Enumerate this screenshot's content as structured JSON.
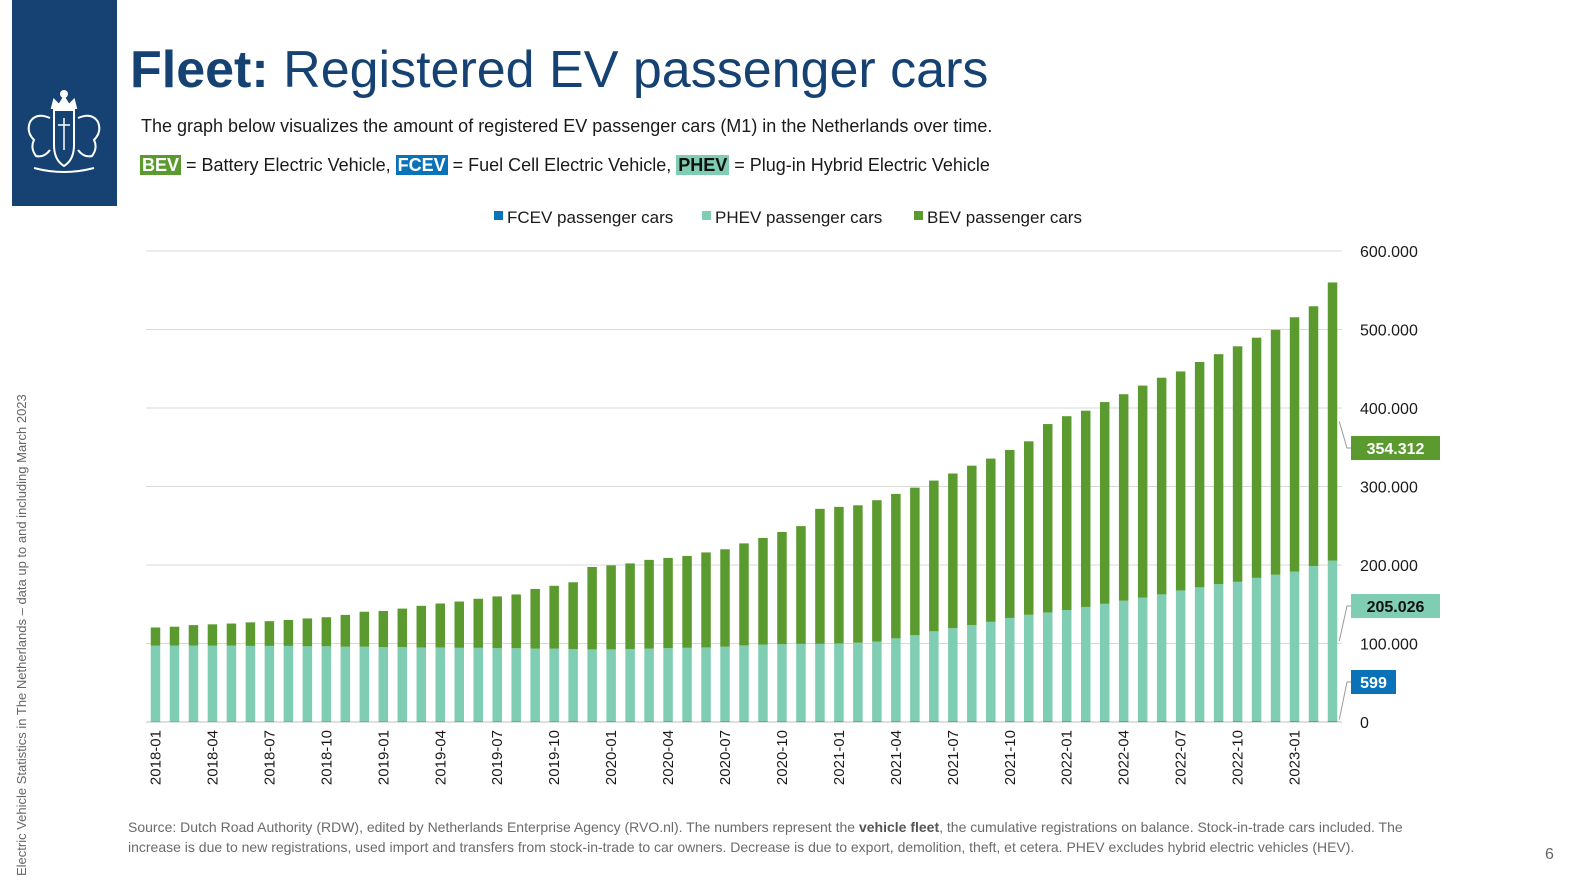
{
  "header": {
    "title_bold": "Fleet:",
    "title_rest": " Registered EV passenger cars",
    "intro": "The graph below visualizes the amount of registered EV passenger cars (M1) in the Netherlands over time.",
    "defs": {
      "bev_tag": "BEV",
      "bev_text": " = Battery Electric Vehicle, ",
      "fcev_tag": "FCEV",
      "fcev_text": " = Fuel Cell Electric Vehicle, ",
      "phev_tag": "PHEV",
      "phev_text": " = Plug-in Hybrid Electric Vehicle"
    }
  },
  "side_text": "Electric Vehicle Statistics in The Netherlands – data up to and including March 2023",
  "source": {
    "part1": "Source: Dutch Road Authority (RDW), edited by Netherlands Enterprise Agency (RVO.nl). The numbers represent the ",
    "bold": "vehicle fleet",
    "part2": ", the cumulative registrations on balance. Stock-in-trade cars included. The increase is due to new registrations, used import and transfers from stock-in-trade to car owners. Decrease is due to export, demolition, theft, et cetera. PHEV excludes hybrid electric vehicles (HEV)."
  },
  "page_number": "6",
  "colors": {
    "brand_blue": "#154273",
    "bev": "#5b9a2f",
    "phev": "#7fcdb3",
    "fcev": "#0a72b9",
    "grid": "#d9d9d9"
  },
  "chart_data": {
    "type": "bar",
    "stacked": true,
    "title": "",
    "xlabel": "",
    "ylabel": "",
    "ylim": [
      0,
      600000
    ],
    "yticks": [
      0,
      100000,
      200000,
      300000,
      400000,
      500000,
      600000
    ],
    "ytick_labels": [
      "0",
      "100.000",
      "200.000",
      "300.000",
      "400.000",
      "500.000",
      "600.000"
    ],
    "y_axis_side": "right",
    "grid": true,
    "legend_position": "top",
    "categories": [
      "2018-01",
      "2018-02",
      "2018-03",
      "2018-04",
      "2018-05",
      "2018-06",
      "2018-07",
      "2018-08",
      "2018-09",
      "2018-10",
      "2018-11",
      "2018-12",
      "2019-01",
      "2019-02",
      "2019-03",
      "2019-04",
      "2019-05",
      "2019-06",
      "2019-07",
      "2019-08",
      "2019-09",
      "2019-10",
      "2019-11",
      "2019-12",
      "2020-01",
      "2020-02",
      "2020-03",
      "2020-04",
      "2020-05",
      "2020-06",
      "2020-07",
      "2020-08",
      "2020-09",
      "2020-10",
      "2020-11",
      "2020-12",
      "2021-01",
      "2021-02",
      "2021-03",
      "2021-04",
      "2021-05",
      "2021-06",
      "2021-07",
      "2021-08",
      "2021-09",
      "2021-10",
      "2021-11",
      "2021-12",
      "2022-01",
      "2022-02",
      "2022-03",
      "2022-04",
      "2022-05",
      "2022-06",
      "2022-07",
      "2022-08",
      "2022-09",
      "2022-10",
      "2022-11",
      "2022-12",
      "2023-01",
      "2023-02",
      "2023-03"
    ],
    "tick_labels": [
      "2018-01",
      "2018-04",
      "2018-07",
      "2018-10",
      "2019-01",
      "2019-04",
      "2019-07",
      "2019-10",
      "2020-01",
      "2020-04",
      "2020-07",
      "2020-10",
      "2021-01",
      "2021-04",
      "2021-07",
      "2021-10",
      "2022-01",
      "2022-04",
      "2022-07",
      "2022-10",
      "2023-01"
    ],
    "series": [
      {
        "name": "FCEV passenger cars",
        "color": "#0a72b9",
        "values": [
          400,
          405,
          410,
          415,
          420,
          425,
          430,
          435,
          440,
          445,
          450,
          455,
          460,
          465,
          470,
          475,
          480,
          485,
          490,
          495,
          500,
          505,
          510,
          515,
          518,
          520,
          522,
          524,
          526,
          528,
          530,
          532,
          534,
          536,
          538,
          540,
          542,
          544,
          546,
          548,
          550,
          552,
          554,
          556,
          558,
          560,
          562,
          564,
          566,
          568,
          570,
          572,
          574,
          576,
          578,
          580,
          582,
          584,
          586,
          588,
          590,
          594,
          599
        ]
      },
      {
        "name": "PHEV passenger cars",
        "color": "#7fcdb3",
        "values": [
          97000,
          97000,
          97000,
          97000,
          97000,
          96500,
          96500,
          96500,
          96000,
          96000,
          95500,
          95500,
          95000,
          95000,
          94500,
          94500,
          94000,
          94000,
          93500,
          93500,
          93000,
          93000,
          92500,
          92000,
          92000,
          92500,
          93000,
          93500,
          94000,
          94500,
          95500,
          97000,
          98000,
          98500,
          99000,
          99000,
          99500,
          100500,
          102000,
          106000,
          110000,
          115000,
          119000,
          123000,
          127000,
          132000,
          136000,
          139000,
          142000,
          146000,
          150000,
          154000,
          158000,
          162000,
          167000,
          171000,
          175000,
          178000,
          183000,
          187000,
          191000,
          198000,
          205026
        ]
      },
      {
        "name": "BEV passenger cars",
        "color": "#5b9a2f",
        "values": [
          23000,
          24000,
          26000,
          27000,
          28000,
          30000,
          31500,
          33000,
          35500,
          37000,
          40500,
          44500,
          46000,
          49000,
          53000,
          56000,
          59000,
          62500,
          66000,
          68500,
          76000,
          80000,
          85000,
          105000,
          107000,
          109000,
          113000,
          115000,
          117000,
          121000,
          124000,
          130000,
          136000,
          143000,
          150000,
          172000,
          174000,
          175000,
          180000,
          184000,
          188000,
          192000,
          197000,
          203000,
          208000,
          214000,
          221000,
          240000,
          247000,
          250000,
          257000,
          263000,
          270000,
          276000,
          279000,
          287000,
          293000,
          300000,
          306000,
          312000,
          324000,
          331000,
          354312
        ]
      }
    ],
    "end_labels": {
      "bev": "354.312",
      "phev": "205.026",
      "fcev": "599"
    }
  }
}
